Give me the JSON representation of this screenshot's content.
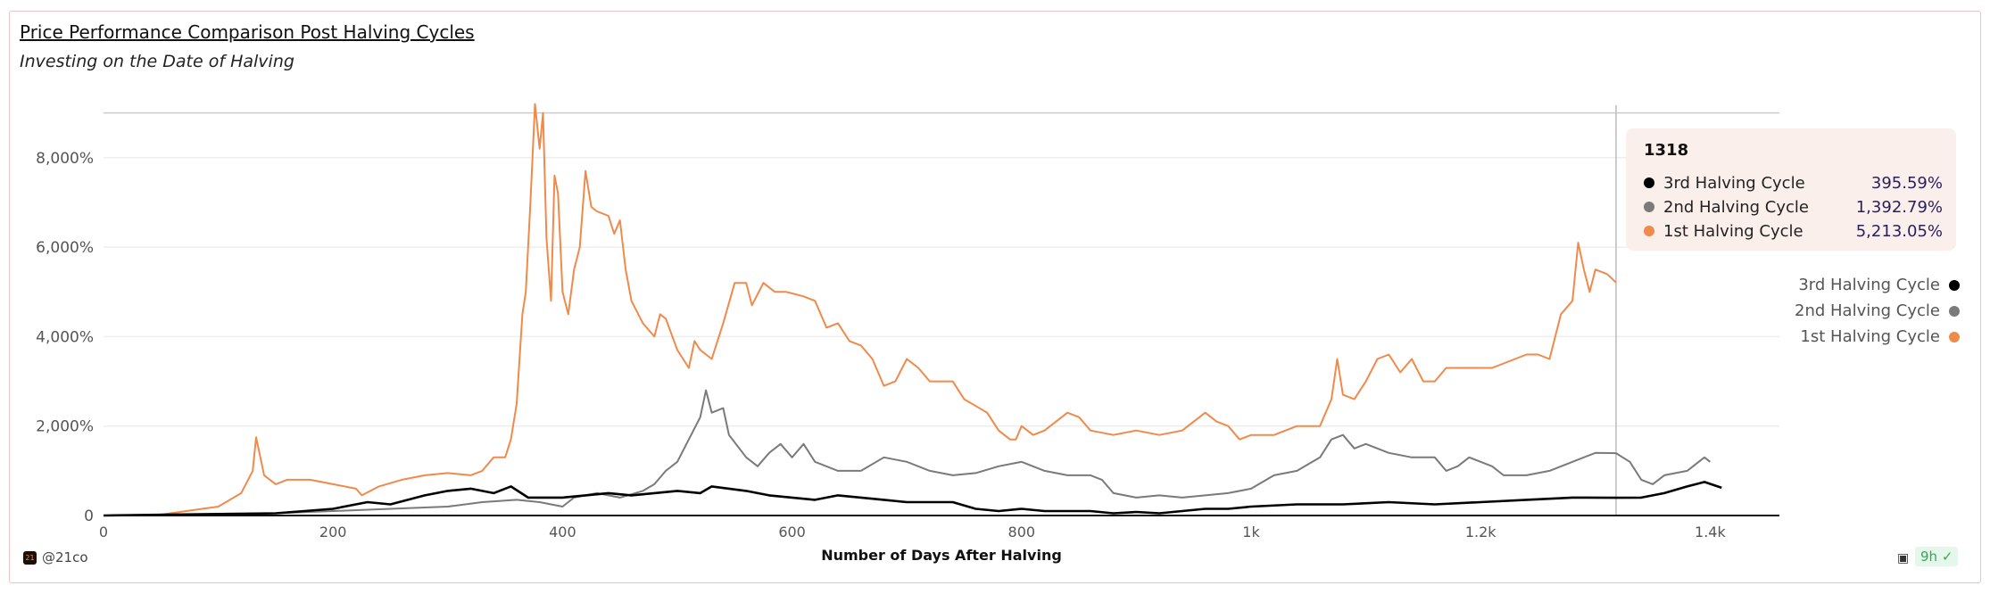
{
  "header": {
    "title": "Price Performance Comparison Post Halving Cycles",
    "subtitle": "Investing on the Date of Halving"
  },
  "tooltip": {
    "x_value": "1318",
    "rows": [
      {
        "label": "3rd Halving Cycle",
        "value": "395.59%",
        "color": "#000000"
      },
      {
        "label": "2nd Halving Cycle",
        "value": "1,392.79%",
        "color": "#7a7a7a"
      },
      {
        "label": "1st Halving Cycle",
        "value": "5,213.05%",
        "color": "#f08a4b"
      }
    ]
  },
  "legend": [
    {
      "label": "3rd Halving Cycle",
      "color": "#000000"
    },
    {
      "label": "2nd Halving Cycle",
      "color": "#7a7a7a"
    },
    {
      "label": "1st Halving Cycle",
      "color": "#f08a4b"
    }
  ],
  "footer": {
    "brand": "@21co",
    "logo_text": "21",
    "freshness": "9h",
    "camera_icon": "camera-icon",
    "check_icon": "check-circle-icon"
  },
  "chart_data": {
    "type": "line",
    "title": "Price Performance Comparison Post Halving Cycles",
    "subtitle": "Investing on the Date of Halving",
    "xlabel": "Number of Days After Halving",
    "ylabel": "",
    "xlim": [
      0,
      1460
    ],
    "ylim": [
      0,
      9000
    ],
    "x_ticks": [
      0,
      200,
      400,
      600,
      800,
      1000,
      1200,
      1400
    ],
    "x_tick_labels": [
      "0",
      "200",
      "400",
      "600",
      "800",
      "1k",
      "1.2k",
      "1.4k"
    ],
    "y_ticks": [
      0,
      2000,
      4000,
      6000,
      8000
    ],
    "y_tick_labels": [
      "0",
      "2,000%",
      "4,000%",
      "6,000%",
      "8,000%"
    ],
    "grid": true,
    "legend_position": "right",
    "crosshair_x": 1318,
    "series": [
      {
        "name": "1st Halving Cycle",
        "color": "#f08a4b",
        "x": [
          0,
          50,
          100,
          120,
          130,
          133,
          140,
          150,
          160,
          180,
          200,
          220,
          225,
          240,
          260,
          280,
          300,
          320,
          330,
          340,
          350,
          355,
          360,
          365,
          368,
          372,
          376,
          380,
          383,
          386,
          390,
          393,
          396,
          400,
          405,
          410,
          415,
          420,
          425,
          430,
          440,
          445,
          450,
          455,
          460,
          470,
          480,
          485,
          490,
          500,
          510,
          515,
          520,
          530,
          540,
          550,
          560,
          565,
          575,
          585,
          595,
          610,
          620,
          630,
          640,
          650,
          660,
          670,
          680,
          690,
          700,
          710,
          720,
          740,
          750,
          770,
          780,
          790,
          795,
          800,
          810,
          820,
          840,
          850,
          860,
          880,
          900,
          920,
          940,
          960,
          970,
          980,
          990,
          1000,
          1020,
          1040,
          1060,
          1070,
          1075,
          1080,
          1090,
          1100,
          1110,
          1120,
          1130,
          1140,
          1150,
          1160,
          1170,
          1190,
          1210,
          1230,
          1240,
          1250,
          1260,
          1265,
          1270,
          1280,
          1285,
          1290,
          1295,
          1300,
          1310,
          1318
        ],
        "y": [
          0,
          20,
          200,
          500,
          1000,
          1750,
          900,
          700,
          800,
          800,
          700,
          600,
          450,
          650,
          800,
          900,
          950,
          900,
          1000,
          1300,
          1300,
          1700,
          2500,
          4500,
          5000,
          7000,
          9200,
          8200,
          9000,
          6200,
          4800,
          7600,
          7200,
          5000,
          4500,
          5500,
          6000,
          7700,
          6900,
          6800,
          6700,
          6300,
          6600,
          5500,
          4800,
          4300,
          4000,
          4500,
          4400,
          3700,
          3300,
          3900,
          3700,
          3500,
          4300,
          5200,
          5200,
          4700,
          5200,
          5000,
          5000,
          4900,
          4800,
          4200,
          4300,
          3900,
          3800,
          3500,
          2900,
          3000,
          3500,
          3300,
          3000,
          3000,
          2600,
          2300,
          1900,
          1700,
          1700,
          2000,
          1800,
          1900,
          2300,
          2200,
          1900,
          1800,
          1900,
          1800,
          1900,
          2300,
          2100,
          2000,
          1700,
          1800,
          1800,
          2000,
          2000,
          2600,
          3500,
          2700,
          2600,
          3000,
          3500,
          3600,
          3200,
          3500,
          3000,
          3000,
          3300,
          3300,
          3300,
          3500,
          3600,
          3600,
          3500,
          4000,
          4500,
          4800,
          6100,
          5500,
          5000,
          5500,
          5400,
          5213
        ]
      },
      {
        "name": "2nd Halving Cycle",
        "color": "#7a7a7a",
        "x": [
          0,
          100,
          200,
          250,
          300,
          330,
          360,
          380,
          400,
          410,
          430,
          450,
          470,
          480,
          490,
          500,
          510,
          520,
          525,
          530,
          540,
          545,
          560,
          570,
          580,
          590,
          600,
          610,
          620,
          640,
          660,
          680,
          700,
          720,
          740,
          760,
          780,
          800,
          820,
          840,
          860,
          870,
          880,
          900,
          920,
          940,
          960,
          980,
          1000,
          1020,
          1040,
          1060,
          1070,
          1080,
          1090,
          1100,
          1110,
          1120,
          1140,
          1160,
          1170,
          1180,
          1190,
          1200,
          1210,
          1220,
          1240,
          1260,
          1280,
          1300,
          1318,
          1330,
          1340,
          1350,
          1360,
          1380,
          1395,
          1400
        ],
        "y": [
          0,
          0,
          100,
          150,
          200,
          300,
          350,
          300,
          200,
          400,
          500,
          400,
          550,
          700,
          1000,
          1200,
          1700,
          2200,
          2800,
          2300,
          2400,
          1800,
          1300,
          1100,
          1400,
          1600,
          1300,
          1600,
          1200,
          1000,
          1000,
          1300,
          1200,
          1000,
          900,
          950,
          1100,
          1200,
          1000,
          900,
          900,
          800,
          500,
          400,
          450,
          400,
          450,
          500,
          600,
          900,
          1000,
          1300,
          1700,
          1800,
          1500,
          1600,
          1500,
          1400,
          1300,
          1300,
          1000,
          1100,
          1300,
          1200,
          1100,
          900,
          900,
          1000,
          1200,
          1400,
          1393,
          1200,
          800,
          700,
          900,
          1000,
          1300,
          1200
        ]
      },
      {
        "name": "3rd Halving Cycle",
        "color": "#000000",
        "x": [
          0,
          150,
          200,
          230,
          250,
          280,
          300,
          320,
          340,
          355,
          370,
          400,
          420,
          440,
          460,
          480,
          500,
          520,
          530,
          545,
          560,
          580,
          600,
          620,
          640,
          660,
          680,
          700,
          740,
          760,
          780,
          800,
          820,
          860,
          880,
          900,
          920,
          940,
          960,
          980,
          1000,
          1040,
          1080,
          1120,
          1160,
          1200,
          1240,
          1280,
          1318,
          1340,
          1360,
          1380,
          1395,
          1410
        ],
        "y": [
          0,
          50,
          150,
          300,
          250,
          450,
          550,
          600,
          500,
          650,
          400,
          400,
          450,
          500,
          450,
          500,
          550,
          500,
          650,
          600,
          550,
          450,
          400,
          350,
          450,
          400,
          350,
          300,
          300,
          150,
          100,
          150,
          100,
          100,
          50,
          80,
          50,
          100,
          150,
          150,
          200,
          250,
          250,
          300,
          250,
          300,
          350,
          400,
          396,
          400,
          500,
          650,
          750,
          620
        ]
      }
    ]
  }
}
